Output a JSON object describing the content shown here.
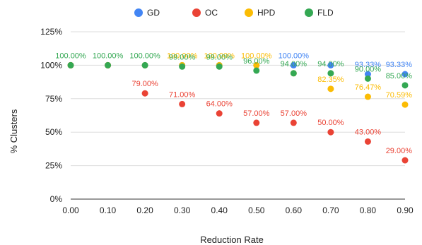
{
  "chart_data": {
    "type": "scatter",
    "xlabel": "Reduction Rate",
    "ylabel": "% Clusters",
    "x": [
      0.0,
      0.1,
      0.2,
      0.3,
      0.4,
      0.5,
      0.6,
      0.7,
      0.8,
      0.9
    ],
    "x_tick_labels": [
      "0.00",
      "0.10",
      "0.20",
      "0.30",
      "0.40",
      "0.50",
      "0.60",
      "0.70",
      "0.80",
      "0.90"
    ],
    "y_tick_labels": [
      "0%",
      "25%",
      "50%",
      "75%",
      "100%",
      "125%"
    ],
    "ylim": [
      0,
      125
    ],
    "grid": true,
    "legend_position": "top",
    "series": [
      {
        "name": "GD",
        "color": "#4285F4",
        "values": [
          100,
          100,
          100,
          100,
          100,
          100,
          100,
          100,
          93.33,
          93.33
        ],
        "labels": [
          "",
          "",
          "",
          "",
          "",
          "",
          "100.00%",
          "",
          "93.33%",
          "93.33%"
        ]
      },
      {
        "name": "OC",
        "color": "#EA4335",
        "values": [
          100,
          100,
          79,
          71,
          64,
          57,
          57,
          50,
          43,
          29
        ],
        "labels": [
          "",
          "",
          "79.00%",
          "71.00%",
          "64.00%",
          "57.00%",
          "57.00%",
          "50.00%",
          "43.00%",
          "29.00%"
        ]
      },
      {
        "name": "HPD",
        "color": "#FBBC04",
        "values": [
          100,
          100,
          100,
          100,
          100,
          100,
          94,
          82.35,
          76.47,
          70.59
        ],
        "labels": [
          "",
          "",
          "",
          "100.00%",
          "100.00%",
          "100.00%",
          "",
          "82.35%",
          "76.47%",
          "70.59%"
        ]
      },
      {
        "name": "FLD",
        "color": "#34A853",
        "values": [
          100,
          100,
          100,
          99,
          99,
          96,
          94,
          94,
          90,
          85
        ],
        "labels": [
          "100.00%",
          "100.00%",
          "100.00%",
          "99.00%",
          "99.00%",
          "96.00%",
          "94.00%",
          "94.00%",
          "90.00%",
          "85.00%"
        ]
      }
    ]
  }
}
